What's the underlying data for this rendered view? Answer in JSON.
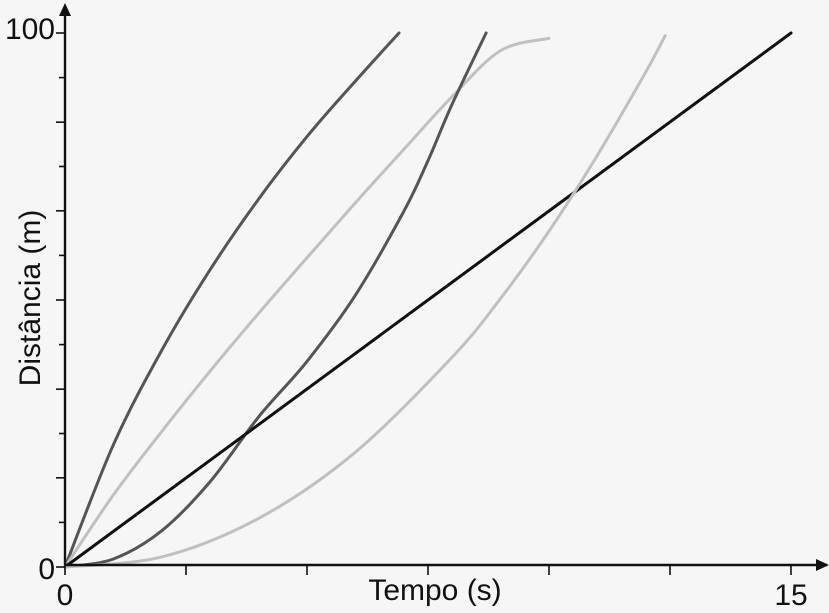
{
  "chart_data": {
    "type": "line",
    "title": "",
    "xlabel": "Tempo (s)",
    "ylabel": "Distância (m)",
    "xlim": [
      0,
      15
    ],
    "ylim": [
      0,
      100
    ],
    "x_tick_labels": [
      {
        "value": 0,
        "label": "0"
      },
      {
        "value": 15,
        "label": "15"
      }
    ],
    "y_tick_labels": [
      {
        "value": 0,
        "label": "0"
      },
      {
        "value": 100,
        "label": "100"
      }
    ],
    "x_ticks": [
      0,
      2.5,
      5,
      7.5,
      10,
      12.5,
      15
    ],
    "y_ticks": [
      0,
      16.7,
      33.3,
      50,
      66.7,
      83.3,
      100
    ],
    "grid": false,
    "legend": "none",
    "series": [
      {
        "color": "#555555",
        "x": [
          0,
          1,
          2,
          3,
          4,
          5,
          6,
          6.9
        ],
        "y": [
          0,
          22.9,
          40.6,
          55.7,
          68.9,
          80.6,
          91,
          100
        ]
      },
      {
        "color": "#c0c0c0",
        "x": [
          0,
          1,
          2,
          3,
          4,
          5,
          6,
          7,
          8,
          9,
          10
        ],
        "y": [
          0,
          13.5,
          25.4,
          36.7,
          47.5,
          57.9,
          68.2,
          78.2,
          88.1,
          96.7,
          99
        ]
      },
      {
        "color": "#555555",
        "x": [
          0,
          1,
          2,
          3,
          4,
          5,
          6,
          7,
          7.5,
          8,
          8.7
        ],
        "y": [
          0,
          1.5,
          6.8,
          16,
          28.1,
          38.5,
          50.9,
          66.6,
          76.1,
          86.7,
          100
        ]
      },
      {
        "color": "#111111",
        "x": [
          0,
          3,
          6,
          9,
          12,
          15
        ],
        "y": [
          0,
          20,
          40,
          60,
          80,
          100
        ]
      },
      {
        "color": "#c0c0c0",
        "x": [
          0,
          2,
          4,
          6,
          8,
          9,
          10,
          11,
          12,
          12.4
        ],
        "y": [
          0,
          1.9,
          9.1,
          21.5,
          39.3,
          50.3,
          62.9,
          77.1,
          92.7,
          99.5
        ]
      }
    ]
  }
}
